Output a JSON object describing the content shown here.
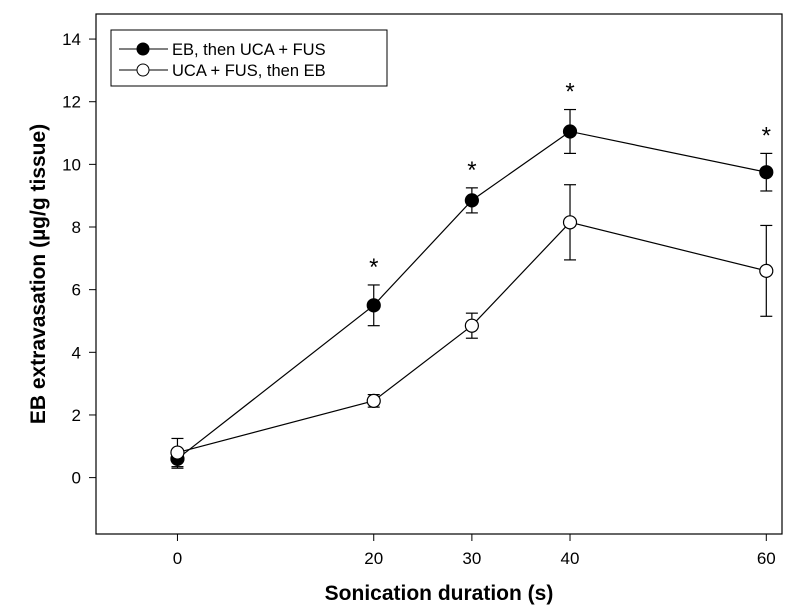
{
  "chart_data": {
    "type": "line",
    "title": "",
    "xlabel": "Sonication duration (s)",
    "ylabel": "EB extravasation (µg/g tissue)",
    "x_tick_labels": [
      "0",
      "20",
      "30",
      "40",
      "60"
    ],
    "x_positions": [
      0,
      20,
      30,
      40,
      60
    ],
    "y_ticks": [
      0,
      2,
      4,
      6,
      8,
      10,
      12,
      14
    ],
    "ylim": [
      -1.8,
      14.8
    ],
    "grid": false,
    "legend_position": "top-left",
    "series": [
      {
        "name": "EB, then UCA + FUS",
        "marker": "filled-circle",
        "color": "#000000",
        "values": [
          0.6,
          5.5,
          8.85,
          11.05,
          9.75
        ],
        "errors": [
          0.3,
          0.65,
          0.4,
          0.7,
          0.6
        ]
      },
      {
        "name": "UCA + FUS, then EB",
        "marker": "open-circle",
        "color": "#000000",
        "values": [
          0.8,
          2.45,
          4.85,
          8.15,
          6.6
        ],
        "errors": [
          0.45,
          0.2,
          0.4,
          1.2,
          1.45
        ]
      }
    ],
    "annotations": [
      {
        "text": "*",
        "x": 20
      },
      {
        "text": "*",
        "x": 30
      },
      {
        "text": "*",
        "x": 40
      },
      {
        "text": "*",
        "x": 60
      }
    ]
  }
}
